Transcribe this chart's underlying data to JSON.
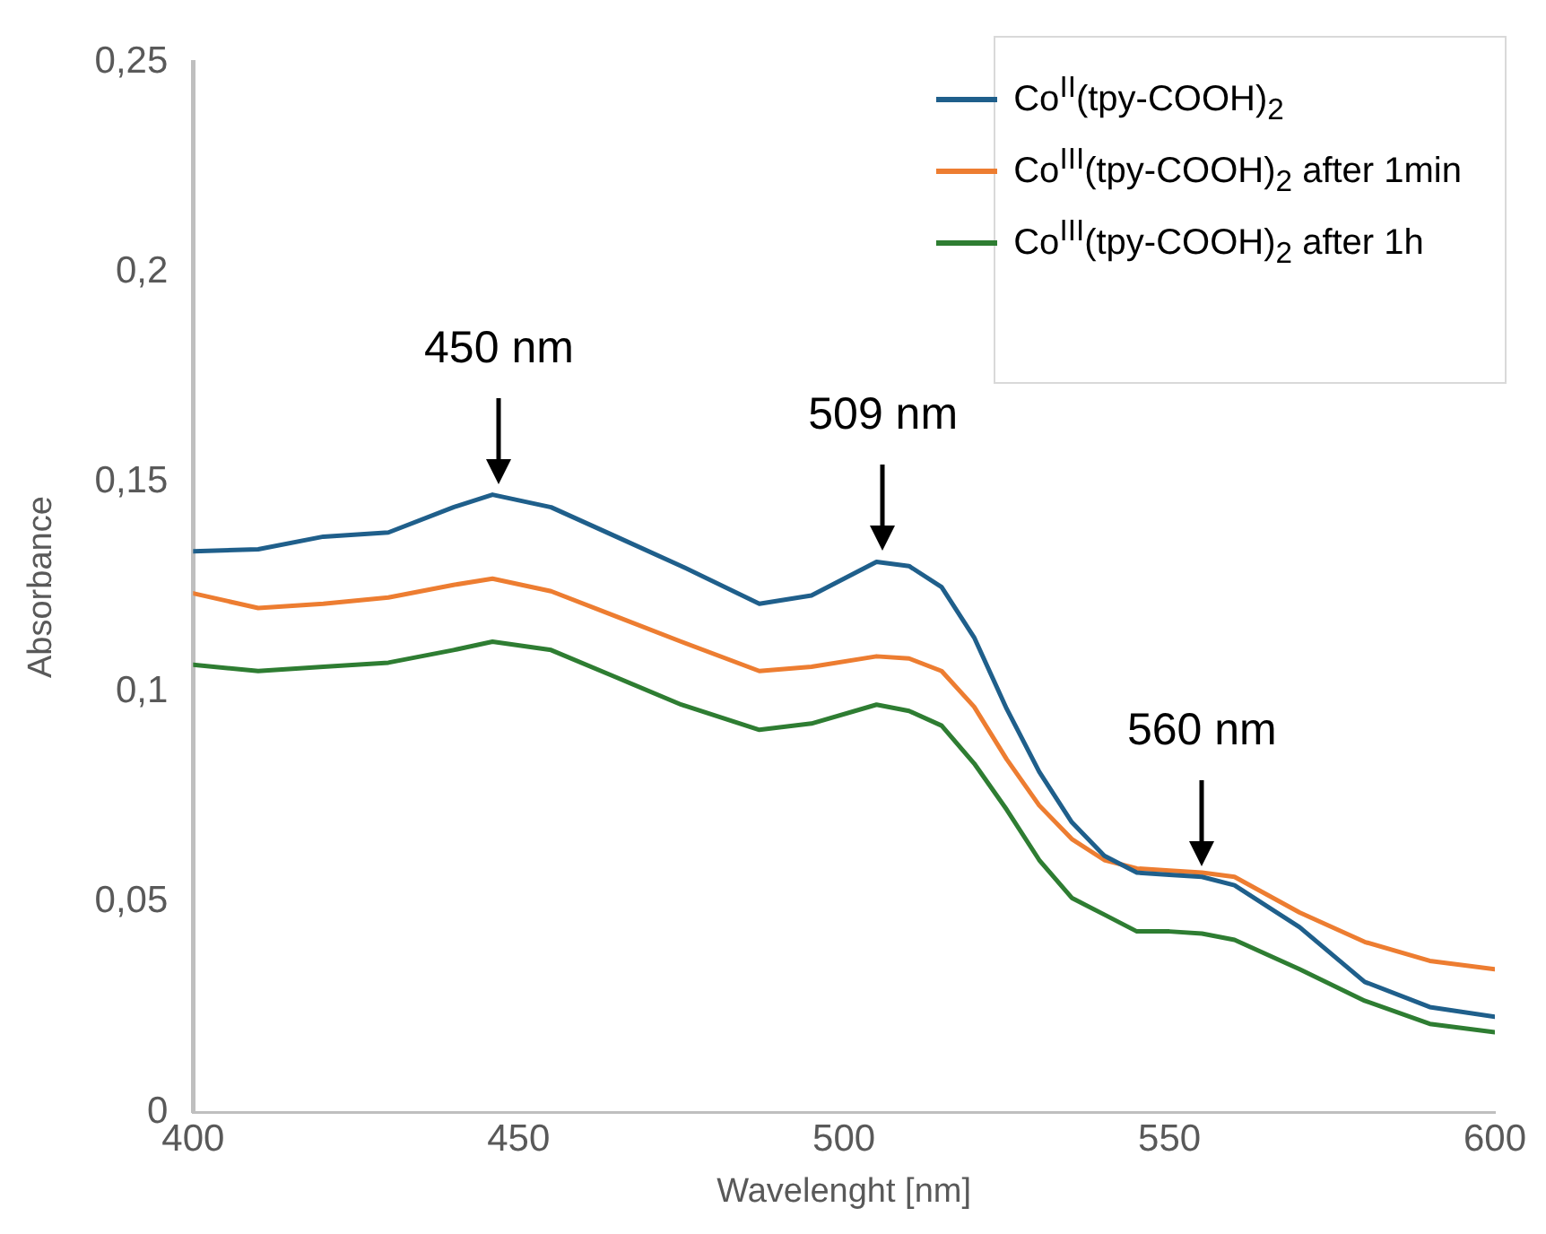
{
  "chart_data": {
    "type": "line",
    "xlabel": "Wavelenght [nm]",
    "ylabel": "Absorbance",
    "x": [
      400,
      410,
      420,
      430,
      440,
      446,
      455,
      465,
      475,
      487,
      495,
      505,
      510,
      515,
      520,
      525,
      530,
      535,
      540,
      545,
      550,
      555,
      560,
      570,
      580,
      590,
      600
    ],
    "series": [
      {
        "name": "Co$^{II}$(tpy-COOH)$_{2}$",
        "color": "#1f5f8b",
        "values": [
          0.1335,
          0.134,
          0.137,
          0.138,
          0.144,
          0.147,
          0.144,
          0.137,
          0.13,
          0.121,
          0.123,
          0.131,
          0.13,
          0.125,
          0.113,
          0.096,
          0.081,
          0.069,
          0.061,
          0.057,
          0.0565,
          0.056,
          0.054,
          0.044,
          0.031,
          0.025,
          0.0227
        ]
      },
      {
        "name": "Co$^{III}$(tpy-COOH)$_{2}$ after 1min",
        "color": "#ed7d31",
        "values": [
          0.1235,
          0.12,
          0.121,
          0.1225,
          0.1255,
          0.127,
          0.124,
          0.118,
          0.112,
          0.105,
          0.106,
          0.1085,
          0.108,
          0.105,
          0.0965,
          0.084,
          0.073,
          0.065,
          0.06,
          0.058,
          0.0575,
          0.057,
          0.056,
          0.0475,
          0.0405,
          0.036,
          0.034
        ]
      },
      {
        "name": "Co$^{III}$(tpy-COOH)$_{2}$ after 1h",
        "color": "#2e7d32",
        "values": [
          0.1065,
          0.105,
          0.106,
          0.107,
          0.11,
          0.112,
          0.11,
          0.1035,
          0.097,
          0.091,
          0.0925,
          0.097,
          0.0955,
          0.092,
          0.083,
          0.072,
          0.06,
          0.051,
          0.047,
          0.043,
          0.043,
          0.0425,
          0.041,
          0.034,
          0.0265,
          0.021,
          0.019
        ]
      }
    ],
    "xlim": [
      400,
      600
    ],
    "xticks": [
      400,
      450,
      500,
      550,
      600
    ],
    "ylim": [
      0,
      0.25
    ],
    "yticks": [
      {
        "value": 0,
        "label": "0"
      },
      {
        "value": 0.05,
        "label": "0,05"
      },
      {
        "value": 0.1,
        "label": "0,1"
      },
      {
        "value": 0.15,
        "label": "0,15"
      },
      {
        "value": 0.2,
        "label": "0,2"
      },
      {
        "value": 0.25,
        "label": "0,25"
      }
    ],
    "annotations": [
      {
        "text": "450 nm",
        "x": 447,
        "y": 0.147
      },
      {
        "text": "509 nm",
        "x": 506,
        "y": 0.131
      },
      {
        "text": "560 nm",
        "x": 555,
        "y": 0.056
      }
    ],
    "legend": "top right",
    "grid": false,
    "marker": "none",
    "line_style": "solid"
  }
}
